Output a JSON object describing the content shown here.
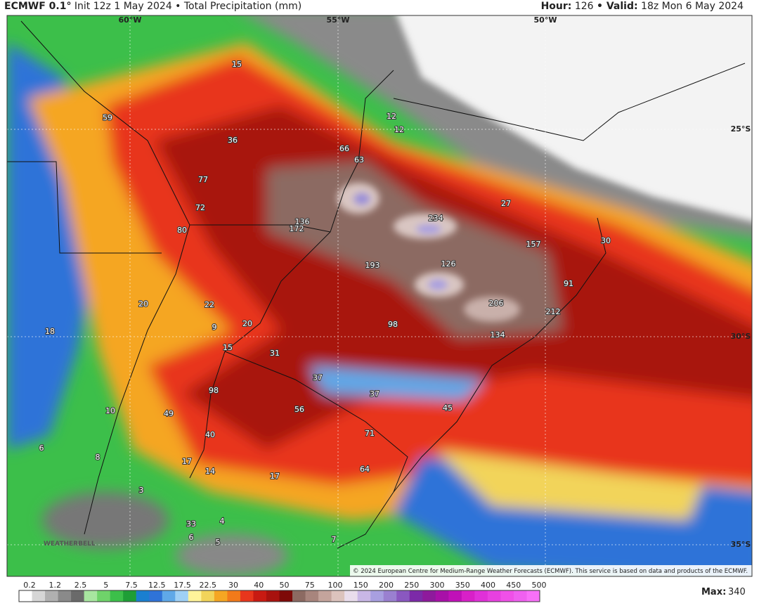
{
  "header": {
    "model": "ECMWF 0.1°",
    "title": "Init 12z 1 May 2024 • Total Precipitation (mm)",
    "hour_label": "Hour:",
    "hour": "126",
    "valid_label": "• Valid:",
    "valid": "18z Mon 6 May 2024"
  },
  "coords": [
    "60°W",
    "55°W",
    "50°W",
    "25°S",
    "30°S",
    "35°S"
  ],
  "labels": [
    "15",
    "59",
    "36",
    "12",
    "12",
    "66",
    "63",
    "77",
    "72",
    "80",
    "136",
    "172",
    "234",
    "27",
    "157",
    "30",
    "193",
    "126",
    "91",
    "206",
    "212",
    "20",
    "22",
    "9",
    "20",
    "98",
    "134",
    "18",
    "15",
    "31",
    "37",
    "37",
    "98",
    "56",
    "45",
    "10",
    "49",
    "40",
    "71",
    "6",
    "8",
    "17",
    "14",
    "17",
    "64",
    "3",
    "33",
    "4",
    "6",
    "5",
    "7"
  ],
  "colorbar": {
    "ticks": [
      "0.2",
      "1.2",
      "2.5",
      "5",
      "7.5",
      "12.5",
      "17.5",
      "22.5",
      "30",
      "40",
      "50",
      "75",
      "100",
      "150",
      "200",
      "250",
      "300",
      "350",
      "400",
      "450",
      "500"
    ]
  },
  "max_label": "Max:",
  "max_value": "340",
  "watermark": "WEATHERBELL",
  "copyright": "© 2024 European Centre for Medium-Range Weather Forecasts (ECMWF). This service is based on data and products of the ECMWF."
}
